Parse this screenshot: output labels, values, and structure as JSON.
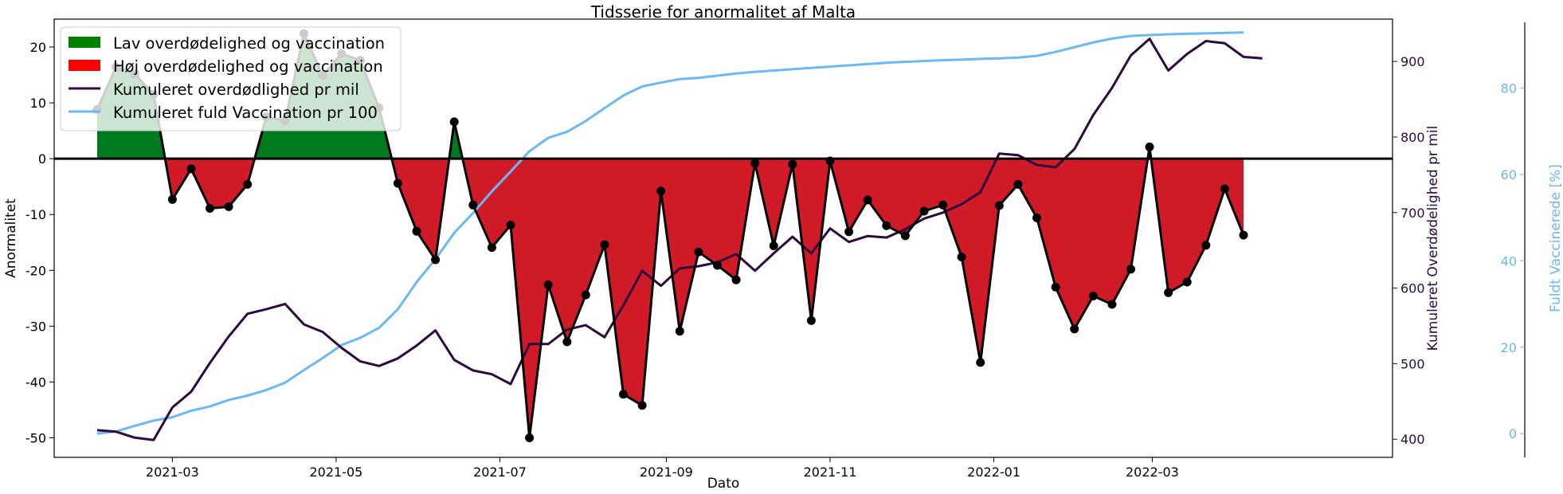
{
  "chart_data": {
    "type": "line",
    "title": "Tidsserie for anormalitet af Malta",
    "xlabel": "Dato",
    "ylabel": "Anormalitet",
    "ylabel_right": "Kumuleret Overdødelighed pr mil",
    "ylabel_right2": "Fuldt Vaccinerede [%]",
    "ylim": [
      -53.5,
      25
    ],
    "ylim_right": [
      376,
      956
    ],
    "ylim_right2": [
      -5.5,
      96
    ],
    "xlim_days": [
      -17.5,
      146
    ],
    "x_ticks": [
      {
        "label": "2021-03",
        "day": 28
      },
      {
        "label": "2021-05",
        "day": 89
      },
      {
        "label": "2021-07",
        "day": 150
      },
      {
        "label": "2021-09",
        "day": 212
      },
      {
        "label": "2021-11",
        "day": 273
      },
      {
        "label": "2022-01",
        "day": 334
      },
      {
        "label": "2022-03",
        "day": 393
      }
    ],
    "y_ticks": [
      20,
      10,
      0,
      -10,
      -20,
      -30,
      -40,
      -50
    ],
    "y_ticks_right": [
      400,
      500,
      600,
      700,
      800,
      900
    ],
    "y_ticks_right2": [
      0,
      20,
      40,
      60,
      80
    ],
    "legend": {
      "placement": "upper-left",
      "entries": [
        {
          "label": "Lav overdødelighed og vaccination",
          "kind": "patch",
          "color": "#008000"
        },
        {
          "label": "Høj overdødelighed og vaccination",
          "kind": "patch",
          "color": "#ff0000"
        },
        {
          "label": "Kumuleret overdødlighed pr mil",
          "kind": "line",
          "color": "#2d0a3e"
        },
        {
          "label": "Kumuleret fuld Vaccination pr 100",
          "kind": "line",
          "color": "#6cb8f5"
        }
      ]
    },
    "colors": {
      "positive_fill": "#007a1f",
      "negative_fill": "#d11a28",
      "anomaly_line": "#000000",
      "excess_line": "#2d0a3e",
      "vaccine_line": "#6cb8f5",
      "vaccine_axis": "#6cb8f5",
      "excess_axis": "#2d0a3e"
    },
    "series": [
      {
        "name": "Anormalitet",
        "axis": "left",
        "start_day": 0,
        "step_days": 7,
        "values": [
          8.8,
          16.4,
          15.2,
          11.5,
          -7.3,
          -1.8,
          -8.9,
          -8.6,
          -4.6,
          7.5,
          6.8,
          22.4,
          14.9,
          18.8,
          17.6,
          9.1,
          -4.4,
          -13.0,
          -18.1,
          6.6,
          -8.3,
          -15.9,
          -11.9,
          -50.0,
          -22.6,
          -32.8,
          -24.4,
          -15.4,
          -42.2,
          -44.2,
          -5.8,
          -30.9,
          -16.7,
          -19.1,
          -21.7,
          -0.8,
          -15.6,
          -1.0,
          -29.0,
          -0.4,
          -13.1,
          -7.4,
          -12.0,
          -13.8,
          -9.4,
          -8.3,
          -17.6,
          -36.5,
          -8.4,
          -4.6,
          -10.6,
          -23.0,
          -30.5,
          -24.6,
          -26.1,
          -19.8,
          2.1,
          -24.0,
          -22.1,
          -15.5,
          -5.4,
          -13.7
        ]
      },
      {
        "name": "Kumuleret overdødlighed pr mil",
        "axis": "right",
        "start_day": 0,
        "step_days": 7,
        "values": [
          412,
          410,
          402,
          399,
          442,
          463,
          501,
          536,
          566,
          572,
          579,
          552,
          542,
          521,
          503,
          497,
          507,
          524,
          544,
          505,
          491,
          486,
          473,
          526,
          526,
          545,
          551,
          535,
          577,
          623,
          603,
          626,
          629,
          634,
          645,
          623,
          646,
          668,
          646,
          679,
          661,
          669,
          667,
          678,
          692,
          700,
          711,
          727,
          778,
          776,
          763,
          760,
          784,
          829,
          865,
          908,
          930,
          888,
          910,
          927,
          924,
          906,
          904
        ]
      },
      {
        "name": "Kumuleret fuld Vaccination pr 100",
        "axis": "right2",
        "start_day": 0,
        "step_days": 7,
        "values": [
          0,
          0.5,
          1.8,
          3,
          3.8,
          5.3,
          6.3,
          7.8,
          8.8,
          10.1,
          11.8,
          14.7,
          17.5,
          20.5,
          22.2,
          24.5,
          28.8,
          35.1,
          40.4,
          46.5,
          51.1,
          56.1,
          60.7,
          65.4,
          68.5,
          69.9,
          72.4,
          75.4,
          78.3,
          80.4,
          81.3,
          82.1,
          82.4,
          82.9,
          83.4,
          83.8,
          84.1,
          84.4,
          84.7,
          85.0,
          85.3,
          85.6,
          85.9,
          86.1,
          86.3,
          86.5,
          86.6,
          86.8,
          86.9,
          87.1,
          87.5,
          88.4,
          89.5,
          90.6,
          91.5,
          92.1,
          92.3,
          92.5,
          92.6,
          92.7,
          92.8,
          92.9
        ]
      }
    ]
  }
}
